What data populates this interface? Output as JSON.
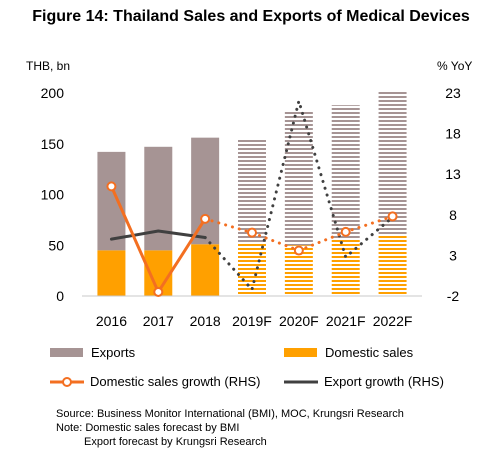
{
  "title": "Figure 14: Thailand Sales and Exports of Medical Devices",
  "chart_data": {
    "type": "bar+line",
    "categories": [
      "2016",
      "2017",
      "2018",
      "2019F",
      "2020F",
      "2021F",
      "2022F"
    ],
    "forecast_from_index": 3,
    "left_axis": {
      "label": "THB, bn",
      "ticks": [
        0,
        50,
        100,
        150,
        200
      ],
      "range": [
        0,
        200
      ]
    },
    "right_axis": {
      "label": "% YoY",
      "ticks": [
        -2,
        3,
        8,
        13,
        18,
        23
      ],
      "range": [
        -2,
        23
      ]
    },
    "stacked_bars": [
      {
        "name": "Domestic sales",
        "color": "#FFA000",
        "values": [
          45,
          45,
          51,
          53,
          50,
          57,
          60
        ]
      },
      {
        "name": "Exports",
        "color": "#A69494",
        "values": [
          97,
          102,
          105,
          102,
          133,
          131,
          141
        ]
      }
    ],
    "lines": [
      {
        "name": "Domestic sales growth (RHS)",
        "color": "#F36F21",
        "values": [
          11.5,
          -1.5,
          7.5,
          5.8,
          3.6,
          5.9,
          7.8
        ]
      },
      {
        "name": "Export growth (RHS)",
        "color": "#404040",
        "values": [
          5.0,
          6.0,
          5.2,
          -1.2,
          22.0,
          2.8,
          7.7
        ]
      }
    ]
  },
  "legend": {
    "exports": "Exports",
    "domestic": "Domestic sales",
    "dom_growth": "Domestic sales growth (RHS)",
    "exp_growth": "Export growth (RHS)"
  },
  "source": {
    "line1": "Source: Business Monitor International (BMI), MOC, Krungsri Research",
    "line2": "Note: Domestic sales forecast by BMI",
    "line3": "Export forecast by Krungsri Research"
  }
}
